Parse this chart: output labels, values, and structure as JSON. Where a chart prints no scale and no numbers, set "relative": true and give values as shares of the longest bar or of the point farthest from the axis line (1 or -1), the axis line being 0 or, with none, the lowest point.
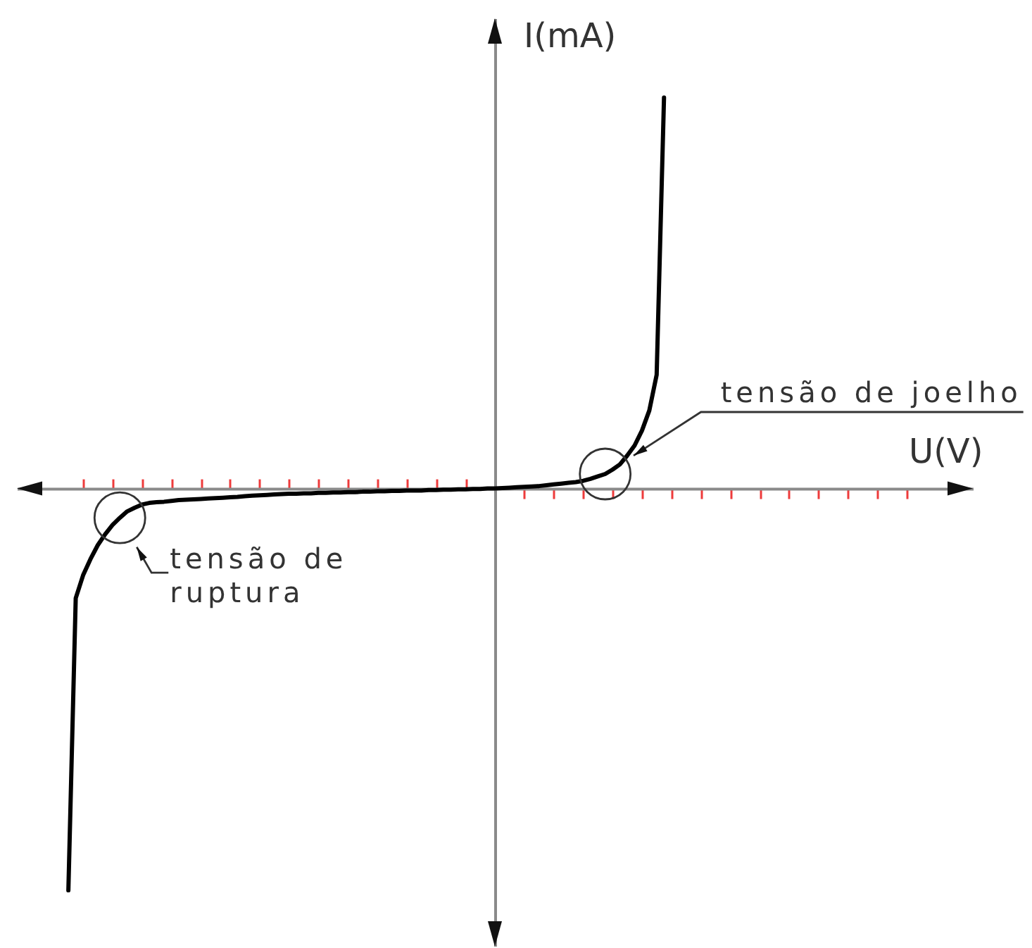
{
  "chart_data": {
    "type": "line",
    "xlabel": "U(V)",
    "ylabel": "I(mA)",
    "relative": true,
    "categories": [
      null,
      null,
      null,
      null,
      null,
      null,
      null,
      null,
      null,
      null,
      null,
      null,
      null,
      null,
      null,
      null,
      null,
      null,
      null,
      null,
      null,
      null,
      null,
      null,
      null,
      null,
      null,
      null,
      null,
      null,
      null,
      null,
      null,
      null,
      null,
      null,
      null,
      null,
      null,
      null,
      null,
      null,
      null,
      null,
      null,
      null,
      null,
      null,
      null,
      null,
      null,
      null,
      null,
      null,
      null,
      null,
      null,
      null,
      null,
      null,
      null,
      null,
      null,
      null,
      null,
      null,
      null,
      null,
      null,
      null,
      null,
      null,
      null,
      null,
      null,
      null,
      null,
      null,
      null,
      null,
      null,
      null,
      null,
      null,
      null,
      null,
      null,
      null,
      null,
      null,
      null,
      null,
      null,
      null,
      null,
      null,
      null,
      null,
      null,
      null,
      null,
      null,
      null,
      null,
      null,
      null,
      null,
      null,
      null,
      null,
      null,
      null,
      null,
      null,
      null,
      null,
      null
    ],
    "series": [
      {
        "color": "#000000",
        "values": [
          -1,
          -0.273,
          -0.216,
          -0.176,
          -0.141,
          -0.114,
          -0.091,
          -0.073,
          -0.057,
          -0.048,
          -0.04,
          -0.036,
          -0.034,
          -0.033,
          -0.031,
          -0.029,
          -0.028,
          -0.027,
          -0.026,
          -0.025,
          -0.024,
          -0.023,
          -0.022,
          -0.021,
          -0.019,
          -0.018,
          -0.017,
          -0.016,
          -0.015,
          -0.014,
          -0.013,
          -0.013,
          -0.012,
          -0.012,
          -0.011,
          -0.011,
          -0.01,
          -0.01,
          -0.009,
          -0.009,
          -0.008,
          -0.008,
          -0.007,
          -0.007,
          -0.006,
          -0.006,
          -0.005,
          -0.005,
          -0.005,
          -0.004,
          -0.004,
          -0.003,
          -0.003,
          -0.002,
          -0.002,
          -0.001,
          -0.001,
          0,
          0,
          0.001,
          0.002,
          0.003,
          0.004,
          0.005,
          0.006,
          0.008,
          0.01,
          0.012,
          0.014,
          0.016,
          0.019,
          0.024,
          0.03,
          0.036,
          0.047,
          0.06,
          0.082,
          0.107,
          0.144,
          0.194,
          0.283,
          0.973,
          null,
          null,
          null,
          null,
          null,
          null,
          null,
          null,
          null,
          null,
          null,
          null,
          null,
          null,
          null,
          null,
          null,
          null,
          null,
          null,
          null,
          null,
          null,
          null,
          null,
          null,
          null,
          null,
          null,
          null,
          null,
          null,
          null,
          null,
          null
        ]
      }
    ],
    "annotations": [
      "tensão de joelho",
      "tensão de ruptura"
    ]
  }
}
